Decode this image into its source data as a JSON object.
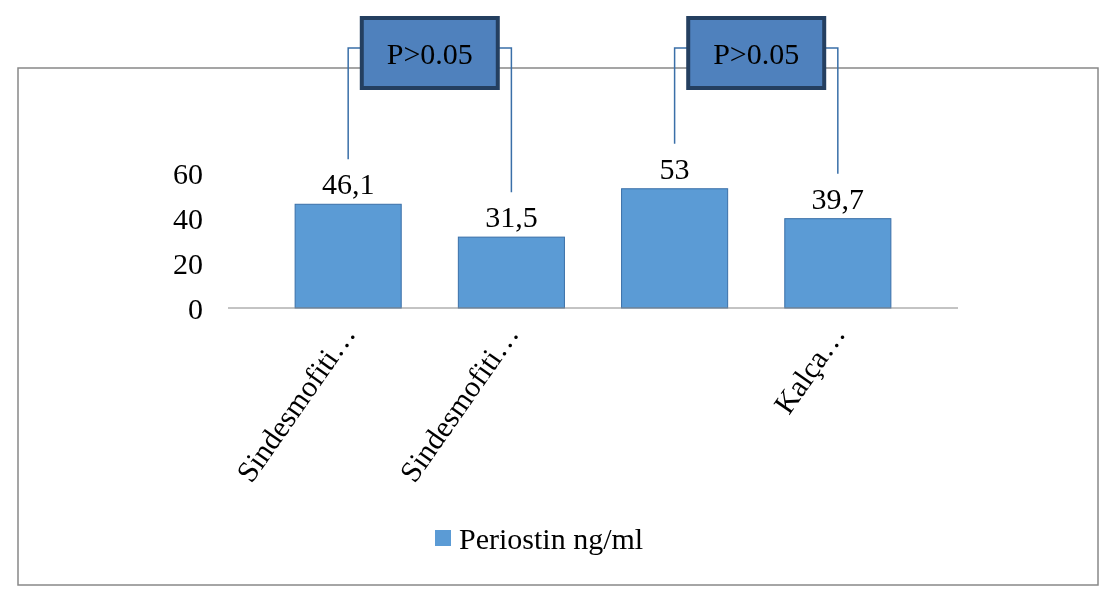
{
  "chart_data": {
    "type": "bar",
    "categories": [
      "Sindesmofiti…",
      "Sindesmofiti…",
      null,
      "Kalça…"
    ],
    "series": [
      {
        "name": "Periostin ng/ml",
        "color": "#5b9bd5",
        "values": [
          46.1,
          31.5,
          53,
          39.7
        ],
        "value_labels": [
          "46,1",
          "31,5",
          "53",
          "39,7"
        ]
      }
    ],
    "ylim": [
      0,
      60
    ],
    "yticks": [
      0,
      20,
      40,
      60
    ],
    "legend": "bottom",
    "annotations": [
      "P>0.05",
      "P>0.05"
    ]
  }
}
